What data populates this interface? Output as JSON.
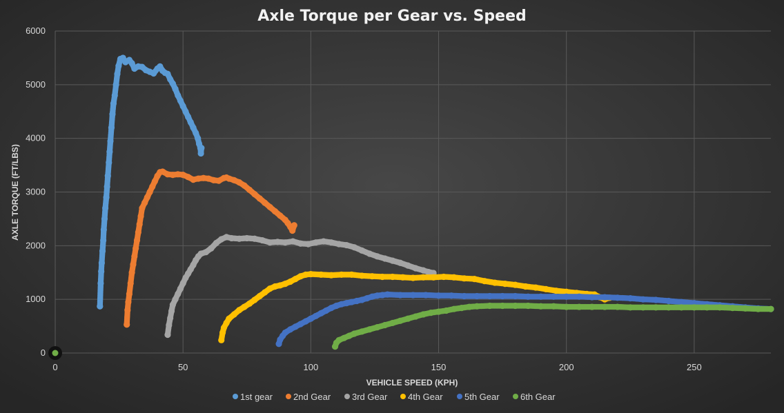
{
  "chart_data": {
    "type": "scatter",
    "title": "Axle Torque per Gear vs. Speed",
    "xlabel": "VEHICLE SPEED (KPH)",
    "ylabel": "AXLE TORQUE (FT/LBS)",
    "xlim": [
      0,
      280
    ],
    "ylim": [
      0,
      6000
    ],
    "xticks": [
      "0",
      "50",
      "100",
      "150",
      "200",
      "250"
    ],
    "yticks": [
      "0",
      "1000",
      "2000",
      "3000",
      "4000",
      "5000",
      "6000"
    ],
    "grid": true,
    "legend_position": "bottom",
    "background": "#2b2b2b",
    "series": [
      {
        "name": "1st gear",
        "color": "#5b9bd5",
        "points": [
          [
            17.5,
            870
          ],
          [
            17.8,
            1300
          ],
          [
            18,
            1520
          ],
          [
            18.2,
            1680
          ],
          [
            18.5,
            1900
          ],
          [
            18.8,
            2100
          ],
          [
            19,
            2300
          ],
          [
            19.3,
            2500
          ],
          [
            19.6,
            2700
          ],
          [
            20,
            2900
          ],
          [
            20.3,
            3100
          ],
          [
            20.6,
            3300
          ],
          [
            21,
            3550
          ],
          [
            21.3,
            3750
          ],
          [
            21.6,
            3950
          ],
          [
            22,
            4200
          ],
          [
            22.4,
            4450
          ],
          [
            22.8,
            4650
          ],
          [
            23.3,
            4800
          ],
          [
            23.8,
            5000
          ],
          [
            24.3,
            5200
          ],
          [
            24.8,
            5350
          ],
          [
            25.5,
            5480
          ],
          [
            26.5,
            5500
          ],
          [
            27.5,
            5420
          ],
          [
            29,
            5460
          ],
          [
            30,
            5400
          ],
          [
            31,
            5300
          ],
          [
            32.5,
            5340
          ],
          [
            34,
            5330
          ],
          [
            35.5,
            5270
          ],
          [
            37,
            5240
          ],
          [
            38.5,
            5210
          ],
          [
            40,
            5300
          ],
          [
            41,
            5340
          ],
          [
            42,
            5260
          ],
          [
            43,
            5220
          ],
          [
            44,
            5200
          ],
          [
            45,
            5100
          ],
          [
            46,
            5020
          ],
          [
            47,
            4920
          ],
          [
            48,
            4800
          ],
          [
            49,
            4700
          ],
          [
            50,
            4600
          ],
          [
            51,
            4500
          ],
          [
            52,
            4400
          ],
          [
            53,
            4300
          ],
          [
            54,
            4200
          ],
          [
            55,
            4100
          ],
          [
            55.8,
            4000
          ],
          [
            56.3,
            3900
          ],
          [
            56.8,
            3820
          ],
          [
            57,
            3720
          ],
          [
            57.2,
            3820
          ]
        ]
      },
      {
        "name": "2nd Gear",
        "color": "#ed7d31",
        "points": [
          [
            28,
            530
          ],
          [
            28.3,
            800
          ],
          [
            28.6,
            950
          ],
          [
            29,
            1100
          ],
          [
            29.5,
            1300
          ],
          [
            30,
            1500
          ],
          [
            30.5,
            1650
          ],
          [
            31,
            1800
          ],
          [
            31.5,
            1950
          ],
          [
            32,
            2100
          ],
          [
            32.5,
            2250
          ],
          [
            33,
            2400
          ],
          [
            33.5,
            2550
          ],
          [
            34,
            2700
          ],
          [
            35,
            2800
          ],
          [
            36,
            2900
          ],
          [
            37,
            3000
          ],
          [
            38,
            3100
          ],
          [
            39,
            3200
          ],
          [
            40,
            3300
          ],
          [
            41,
            3370
          ],
          [
            42,
            3380
          ],
          [
            44,
            3330
          ],
          [
            46,
            3320
          ],
          [
            48,
            3330
          ],
          [
            50,
            3320
          ],
          [
            52,
            3280
          ],
          [
            54,
            3230
          ],
          [
            56,
            3250
          ],
          [
            58,
            3260
          ],
          [
            60,
            3250
          ],
          [
            62,
            3220
          ],
          [
            64,
            3210
          ],
          [
            66,
            3260
          ],
          [
            67,
            3270
          ],
          [
            68,
            3250
          ],
          [
            70,
            3220
          ],
          [
            72,
            3180
          ],
          [
            74,
            3120
          ],
          [
            76,
            3040
          ],
          [
            78,
            2960
          ],
          [
            80,
            2880
          ],
          [
            82,
            2800
          ],
          [
            84,
            2720
          ],
          [
            86,
            2640
          ],
          [
            88,
            2560
          ],
          [
            90,
            2480
          ],
          [
            91,
            2420
          ],
          [
            92,
            2350
          ],
          [
            92.8,
            2280
          ],
          [
            93.5,
            2380
          ]
        ]
      },
      {
        "name": "3rd Gear",
        "color": "#a5a5a5",
        "points": [
          [
            44,
            340
          ],
          [
            44.5,
            520
          ],
          [
            45,
            650
          ],
          [
            45.5,
            780
          ],
          [
            46,
            900
          ],
          [
            47,
            1000
          ],
          [
            48,
            1100
          ],
          [
            49,
            1200
          ],
          [
            50,
            1300
          ],
          [
            51,
            1400
          ],
          [
            52,
            1480
          ],
          [
            53,
            1560
          ],
          [
            54,
            1640
          ],
          [
            55,
            1730
          ],
          [
            56,
            1800
          ],
          [
            57,
            1850
          ],
          [
            59,
            1880
          ],
          [
            61,
            1950
          ],
          [
            63,
            2050
          ],
          [
            65,
            2120
          ],
          [
            67,
            2160
          ],
          [
            69,
            2140
          ],
          [
            72,
            2130
          ],
          [
            75,
            2140
          ],
          [
            78,
            2130
          ],
          [
            81,
            2100
          ],
          [
            84,
            2060
          ],
          [
            87,
            2070
          ],
          [
            90,
            2060
          ],
          [
            93,
            2080
          ],
          [
            96,
            2040
          ],
          [
            99,
            2030
          ],
          [
            102,
            2060
          ],
          [
            105,
            2080
          ],
          [
            108,
            2060
          ],
          [
            111,
            2030
          ],
          [
            114,
            2010
          ],
          [
            117,
            1970
          ],
          [
            120,
            1910
          ],
          [
            123,
            1850
          ],
          [
            126,
            1800
          ],
          [
            129,
            1760
          ],
          [
            132,
            1720
          ],
          [
            135,
            1680
          ],
          [
            138,
            1630
          ],
          [
            141,
            1580
          ],
          [
            144,
            1540
          ],
          [
            146,
            1510
          ],
          [
            148,
            1490
          ]
        ]
      },
      {
        "name": "4th Gear",
        "color": "#ffc000",
        "points": [
          [
            65,
            240
          ],
          [
            65.5,
            380
          ],
          [
            66,
            470
          ],
          [
            67,
            560
          ],
          [
            68,
            640
          ],
          [
            70,
            720
          ],
          [
            72,
            800
          ],
          [
            74,
            860
          ],
          [
            76,
            920
          ],
          [
            78,
            990
          ],
          [
            80,
            1060
          ],
          [
            82,
            1130
          ],
          [
            84,
            1200
          ],
          [
            86,
            1240
          ],
          [
            88,
            1260
          ],
          [
            90,
            1290
          ],
          [
            92,
            1330
          ],
          [
            94,
            1380
          ],
          [
            96,
            1430
          ],
          [
            98,
            1460
          ],
          [
            100,
            1470
          ],
          [
            104,
            1460
          ],
          [
            108,
            1450
          ],
          [
            112,
            1460
          ],
          [
            116,
            1460
          ],
          [
            120,
            1440
          ],
          [
            124,
            1430
          ],
          [
            128,
            1420
          ],
          [
            132,
            1420
          ],
          [
            136,
            1410
          ],
          [
            140,
            1400
          ],
          [
            144,
            1410
          ],
          [
            148,
            1410
          ],
          [
            152,
            1420
          ],
          [
            156,
            1410
          ],
          [
            160,
            1390
          ],
          [
            164,
            1380
          ],
          [
            168,
            1340
          ],
          [
            172,
            1310
          ],
          [
            176,
            1290
          ],
          [
            180,
            1270
          ],
          [
            184,
            1240
          ],
          [
            188,
            1220
          ],
          [
            192,
            1190
          ],
          [
            196,
            1160
          ],
          [
            200,
            1140
          ],
          [
            204,
            1120
          ],
          [
            208,
            1100
          ],
          [
            211,
            1090
          ],
          [
            213,
            1040
          ],
          [
            215,
            1000
          ],
          [
            217,
            1030
          ]
        ]
      },
      {
        "name": "5th Gear",
        "color": "#4472c4",
        "points": [
          [
            87.5,
            170
          ],
          [
            88,
            250
          ],
          [
            89,
            320
          ],
          [
            90,
            380
          ],
          [
            92,
            440
          ],
          [
            94,
            490
          ],
          [
            96,
            540
          ],
          [
            98,
            590
          ],
          [
            100,
            640
          ],
          [
            102,
            690
          ],
          [
            104,
            740
          ],
          [
            106,
            790
          ],
          [
            108,
            840
          ],
          [
            110,
            880
          ],
          [
            112,
            910
          ],
          [
            114,
            930
          ],
          [
            116,
            950
          ],
          [
            118,
            970
          ],
          [
            120,
            990
          ],
          [
            122,
            1020
          ],
          [
            124,
            1050
          ],
          [
            126,
            1070
          ],
          [
            128,
            1080
          ],
          [
            130,
            1090
          ],
          [
            135,
            1080
          ],
          [
            140,
            1080
          ],
          [
            145,
            1080
          ],
          [
            150,
            1070
          ],
          [
            155,
            1070
          ],
          [
            160,
            1060
          ],
          [
            165,
            1060
          ],
          [
            170,
            1060
          ],
          [
            175,
            1060
          ],
          [
            180,
            1060
          ],
          [
            185,
            1050
          ],
          [
            190,
            1050
          ],
          [
            195,
            1050
          ],
          [
            200,
            1050
          ],
          [
            205,
            1050
          ],
          [
            210,
            1040
          ],
          [
            215,
            1040
          ],
          [
            220,
            1030
          ],
          [
            225,
            1020
          ],
          [
            230,
            1000
          ],
          [
            235,
            990
          ],
          [
            240,
            970
          ],
          [
            245,
            950
          ],
          [
            250,
            930
          ],
          [
            255,
            910
          ],
          [
            260,
            890
          ],
          [
            265,
            870
          ],
          [
            270,
            850
          ],
          [
            275,
            830
          ],
          [
            280,
            820
          ]
        ]
      },
      {
        "name": "6th Gear",
        "color": "#70ad47",
        "points": [
          [
            0,
            10
          ],
          [
            109.5,
            120
          ],
          [
            110,
            190
          ],
          [
            111,
            240
          ],
          [
            113,
            280
          ],
          [
            115,
            320
          ],
          [
            117,
            360
          ],
          [
            120,
            400
          ],
          [
            123,
            440
          ],
          [
            126,
            480
          ],
          [
            129,
            520
          ],
          [
            132,
            560
          ],
          [
            135,
            600
          ],
          [
            138,
            640
          ],
          [
            141,
            680
          ],
          [
            144,
            720
          ],
          [
            147,
            750
          ],
          [
            150,
            770
          ],
          [
            153,
            790
          ],
          [
            156,
            820
          ],
          [
            159,
            840
          ],
          [
            162,
            860
          ],
          [
            165,
            870
          ],
          [
            170,
            880
          ],
          [
            175,
            880
          ],
          [
            180,
            880
          ],
          [
            185,
            880
          ],
          [
            190,
            870
          ],
          [
            195,
            870
          ],
          [
            200,
            860
          ],
          [
            205,
            860
          ],
          [
            210,
            860
          ],
          [
            215,
            860
          ],
          [
            220,
            860
          ],
          [
            225,
            850
          ],
          [
            230,
            850
          ],
          [
            235,
            850
          ],
          [
            240,
            850
          ],
          [
            245,
            850
          ],
          [
            250,
            850
          ],
          [
            255,
            850
          ],
          [
            260,
            850
          ],
          [
            265,
            840
          ],
          [
            270,
            830
          ],
          [
            275,
            820
          ],
          [
            280,
            820
          ]
        ]
      }
    ]
  }
}
